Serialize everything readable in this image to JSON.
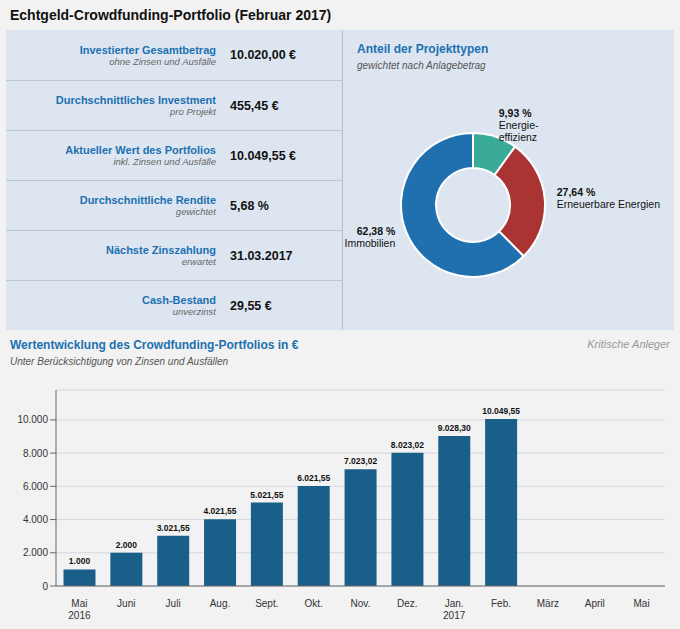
{
  "title": "Echtgeld-Crowdfunding-Portfolio (Februar 2017)",
  "annotations": [
    [
      "Investierter Gesamtbetrag",
      "ohne Zinsen und Ausfälle",
      "10.020,00 €"
    ],
    [
      "Durchschnittliches Investment",
      "pro Projekt",
      "455,45 €"
    ],
    [
      "Aktueller Wert des Portfolios",
      "inkl. Zinsen und Ausfälle",
      "10.049,55 €"
    ],
    [
      "Durchschnittliche Rendite",
      "gewichtet",
      "5,68 %"
    ],
    [
      "Nächste Zinszahlung",
      "erwartet",
      "31.03.2017"
    ],
    [
      "Cash-Bestand",
      "unverzinst",
      "29,55 €"
    ]
  ],
  "chart_data": [
    {
      "type": "pie",
      "title": "Anteil der Projekttypen",
      "subtitle": "gewichtet nach Anlagebetrag",
      "categories": [
        "Energie-\neffizienz",
        "Erneuerbare Energien",
        "Immobilien"
      ],
      "values": [
        9.93,
        27.64,
        62.38
      ],
      "value_labels": [
        "9,93 %",
        "27,64 %",
        "62,38 %"
      ],
      "colors": [
        "#3aaa99",
        "#aa3333",
        "#2070b0"
      ],
      "data_labels": true
    },
    {
      "type": "bar",
      "title": "Wertentwicklung des Crowdfunding-Portfolios in €",
      "subtitle": "Unter Berücksichtigung von Zinsen und Ausfällen",
      "annotations": [
        "Kritische Anleger"
      ],
      "categories": [
        "Mai\n2016",
        "Juni",
        "Juli",
        "Aug.",
        "Sept.",
        "Okt.",
        "Nov.",
        "Dez.",
        "Jan.\n2017",
        "Feb.",
        "März",
        "April",
        "Mai"
      ],
      "values": [
        1000,
        2000,
        3021.55,
        4021.55,
        5021.55,
        6021.55,
        7023.02,
        8023.02,
        9028.3,
        10049.55,
        0,
        0,
        0
      ],
      "value_labels": [
        "1.000",
        "2.000",
        "3.021,55",
        "4.021,55",
        "5.021,55",
        "6.021,55",
        "7.023,02",
        "8.023,02",
        "9.028,30",
        "10.049,55",
        null,
        null,
        null
      ],
      "color": "#1a5f8a",
      "ylim": [
        0,
        11800
      ],
      "yticks": [
        0,
        {
          "value": 2000,
          "label": "2.000"
        },
        {
          "value": 4000,
          "label": "4.000"
        },
        {
          "value": 6000,
          "label": "6.000"
        },
        {
          "value": 8000,
          "label": "8.000"
        },
        {
          "value": 10000,
          "label": "10.000"
        }
      ],
      "grid": true,
      "data_labels": true
    }
  ]
}
